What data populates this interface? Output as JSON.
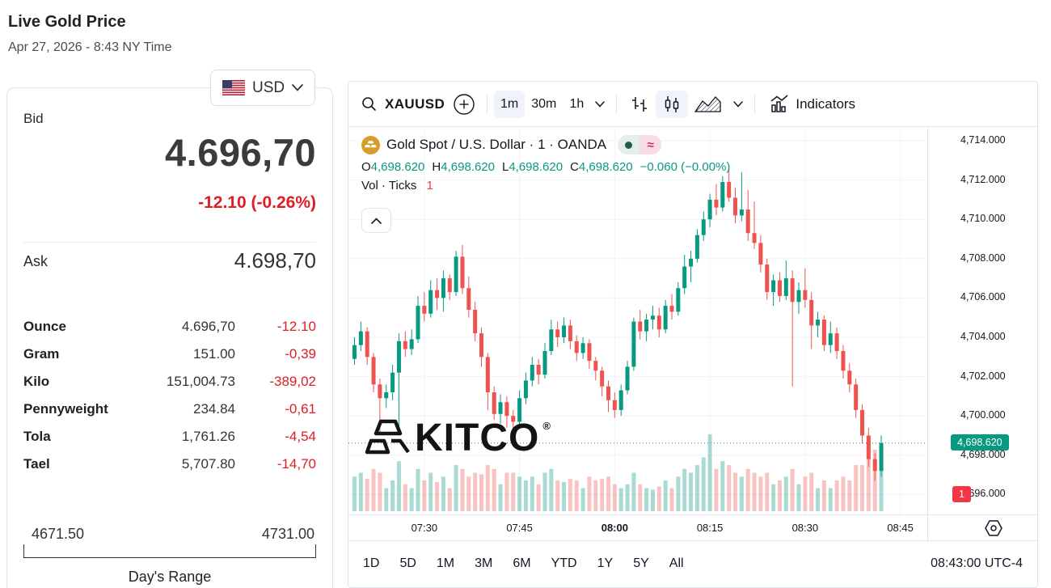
{
  "header": {
    "title": "Live Gold Price",
    "subtitle": "Apr 27, 2026 - 8:43 NY Time"
  },
  "currency_selector": {
    "code": "USD",
    "flag": "us-flag"
  },
  "quote": {
    "bid_label": "Bid",
    "bid": "4.696,70",
    "change": "-12.10 (-0.26%)",
    "ask_label": "Ask",
    "ask": "4.698,70",
    "metals": [
      {
        "label": "Ounce",
        "value": "4.696,70",
        "change": "-12.10"
      },
      {
        "label": "Gram",
        "value": "151.00",
        "change": "-0,39"
      },
      {
        "label": "Kilo",
        "value": "151,004.73",
        "change": "-389,02"
      },
      {
        "label": "Pennyweight",
        "value": "234.84",
        "change": "-0,61"
      },
      {
        "label": "Tola",
        "value": "1,761.26",
        "change": "-4,54"
      },
      {
        "label": "Tael",
        "value": "5,707.80",
        "change": "-14,70"
      }
    ],
    "range": {
      "low": "4671.50",
      "high": "4731.00",
      "label": "Day's Range"
    }
  },
  "chart": {
    "toolbar": {
      "symbol": "XAUUSD",
      "intervals": [
        "1m",
        "30m",
        "1h"
      ],
      "active_interval": "1m",
      "indicators_label": "Indicators"
    },
    "legend": {
      "title": "Gold Spot / U.S. Dollar · 1 · OANDA",
      "ohlc": [
        {
          "k": "O",
          "v": "4,698.620"
        },
        {
          "k": "H",
          "v": "4,698.620"
        },
        {
          "k": "L",
          "v": "4,698.620"
        },
        {
          "k": "C",
          "v": "4,698.620"
        }
      ],
      "change": "−0.060 (−0.00%)",
      "volume_label": "Vol · Ticks",
      "volume_value": "1"
    },
    "watermark": "KITCO",
    "price_axis": {
      "last_price_badge": "4,698.620",
      "countdown_badge": "1"
    },
    "time_axis": {
      "labels": [
        "07:30",
        "07:45",
        "08:00",
        "08:15",
        "08:30",
        "08:45"
      ],
      "bold": "08:00"
    },
    "bottom_toolbar": {
      "ranges": [
        "1D",
        "5D",
        "1M",
        "3M",
        "6M",
        "YTD",
        "1Y",
        "5Y",
        "All"
      ],
      "clock": "08:43:00 UTC-4"
    },
    "colors": {
      "up": "#089981",
      "down": "#ef5350",
      "vol_up": "rgba(8,153,129,0.35)",
      "vol_down": "rgba(239,83,80,0.35)",
      "grid": "#f0f3fa",
      "axis_text": "#131722",
      "badge_up": "#089981",
      "badge_count": "#f23645",
      "negative_red": "#e01c24"
    }
  },
  "chart_data": {
    "type": "candlestick",
    "symbol": "XAUUSD",
    "title": "Gold Spot / U.S. Dollar · 1 · OANDA",
    "interval": "1m",
    "start_time": "07:19",
    "end_time": "08:42",
    "last_price": 4698.62,
    "ylim": [
      4696,
      4714
    ],
    "y_ticks": [
      4696,
      4698,
      4700,
      4702,
      4704,
      4706,
      4708,
      4710,
      4712,
      4714
    ],
    "x_ticks": [
      "07:30",
      "07:45",
      "08:00",
      "08:15",
      "08:30",
      "08:45"
    ],
    "columns": [
      "open",
      "high",
      "low",
      "close",
      "relative_volume"
    ],
    "candles": [
      [
        4702.9,
        4704.0,
        4702.6,
        4703.6,
        0.45
      ],
      [
        4703.6,
        4704.8,
        4703.3,
        4704.3,
        0.5
      ],
      [
        4704.3,
        4704.5,
        4702.6,
        4703.0,
        0.42
      ],
      [
        4703.0,
        4703.2,
        4701.2,
        4701.6,
        0.55
      ],
      [
        4701.6,
        4701.9,
        4699.2,
        4700.9,
        0.5
      ],
      [
        4700.9,
        4701.6,
        4700.4,
        4701.2,
        0.3
      ],
      [
        4701.2,
        4702.6,
        4700.8,
        4702.2,
        0.4
      ],
      [
        4702.2,
        4704.2,
        4699.0,
        4703.8,
        0.65
      ],
      [
        4703.8,
        4704.3,
        4703.0,
        4703.4,
        0.35
      ],
      [
        4703.4,
        4704.4,
        4703.1,
        4703.9,
        0.3
      ],
      [
        4703.9,
        4706.1,
        4703.7,
        4705.6,
        0.55
      ],
      [
        4705.6,
        4706.3,
        4704.8,
        4705.2,
        0.4
      ],
      [
        4705.2,
        4706.9,
        4705.0,
        4706.4,
        0.5
      ],
      [
        4706.4,
        4707.0,
        4705.4,
        4706.0,
        0.38
      ],
      [
        4706.0,
        4707.4,
        4705.3,
        4707.0,
        0.45
      ],
      [
        4707.0,
        4707.2,
        4705.9,
        4706.3,
        0.3
      ],
      [
        4706.3,
        4708.4,
        4706.1,
        4708.1,
        0.6
      ],
      [
        4708.1,
        4708.7,
        4706.2,
        4706.5,
        0.55
      ],
      [
        4706.5,
        4707.1,
        4705.0,
        4705.4,
        0.45
      ],
      [
        4705.4,
        4705.8,
        4703.8,
        4704.2,
        0.5
      ],
      [
        4704.2,
        4704.5,
        4702.5,
        4703.0,
        0.48
      ],
      [
        4703.0,
        4703.2,
        4700.3,
        4701.2,
        0.6
      ],
      [
        4701.2,
        4701.5,
        4699.8,
        4700.1,
        0.55
      ],
      [
        4700.1,
        4701.1,
        4699.6,
        4700.7,
        0.35
      ],
      [
        4700.7,
        4701.0,
        4699.4,
        4700.0,
        0.5
      ],
      [
        4700.0,
        4700.3,
        4699.2,
        4699.7,
        0.5
      ],
      [
        4699.7,
        4701.3,
        4699.5,
        4700.9,
        0.45
      ],
      [
        4700.9,
        4702.2,
        4700.6,
        4701.8,
        0.4
      ],
      [
        4701.8,
        4703.0,
        4701.5,
        4702.6,
        0.45
      ],
      [
        4702.6,
        4702.9,
        4701.6,
        4702.1,
        0.35
      ],
      [
        4702.1,
        4703.7,
        4701.9,
        4703.3,
        0.5
      ],
      [
        4703.3,
        4704.9,
        4703.1,
        4704.4,
        0.55
      ],
      [
        4704.4,
        4704.8,
        4703.5,
        4704.0,
        0.4
      ],
      [
        4704.0,
        4705.0,
        4703.7,
        4704.6,
        0.38
      ],
      [
        4704.6,
        4704.9,
        4703.4,
        4703.8,
        0.42
      ],
      [
        4703.8,
        4704.1,
        4702.8,
        4703.2,
        0.4
      ],
      [
        4703.2,
        4704.0,
        4702.9,
        4703.7,
        0.3
      ],
      [
        4703.7,
        4703.9,
        4702.4,
        4702.8,
        0.45
      ],
      [
        4702.8,
        4703.0,
        4701.8,
        4702.3,
        0.4
      ],
      [
        4702.3,
        4702.5,
        4701.0,
        4701.5,
        0.42
      ],
      [
        4701.5,
        4701.8,
        4700.2,
        4700.8,
        0.45
      ],
      [
        4700.8,
        4701.2,
        4699.9,
        4700.3,
        0.35
      ],
      [
        4700.3,
        4701.6,
        4700.0,
        4701.3,
        0.3
      ],
      [
        4701.3,
        4702.8,
        4701.1,
        4702.5,
        0.35
      ],
      [
        4702.5,
        4705.0,
        4702.3,
        4704.8,
        0.5
      ],
      [
        4704.8,
        4705.4,
        4703.9,
        4704.3,
        0.35
      ],
      [
        4704.3,
        4705.2,
        4703.8,
        4704.9,
        0.3
      ],
      [
        4704.9,
        4705.6,
        4704.4,
        4705.1,
        0.28
      ],
      [
        4705.1,
        4705.5,
        4704.0,
        4704.4,
        0.32
      ],
      [
        4704.4,
        4705.9,
        4704.2,
        4705.6,
        0.4
      ],
      [
        4705.6,
        4706.2,
        4704.9,
        4705.3,
        0.3
      ],
      [
        4705.3,
        4706.8,
        4705.1,
        4706.5,
        0.45
      ],
      [
        4706.5,
        4708.2,
        4706.2,
        4707.6,
        0.55
      ],
      [
        4707.6,
        4708.4,
        4706.8,
        4708.0,
        0.5
      ],
      [
        4708.0,
        4709.5,
        4707.8,
        4709.2,
        0.6
      ],
      [
        4709.2,
        4710.4,
        4708.9,
        4710.0,
        0.7
      ],
      [
        4710.0,
        4711.3,
        4709.6,
        4711.0,
        1.0
      ],
      [
        4711.0,
        4711.8,
        4710.2,
        4710.6,
        0.55
      ],
      [
        4710.6,
        4712.2,
        4710.4,
        4711.9,
        0.65
      ],
      [
        4711.9,
        4712.6,
        4710.9,
        4711.1,
        0.6
      ],
      [
        4711.1,
        4711.6,
        4709.8,
        4710.2,
        0.5
      ],
      [
        4710.2,
        4712.4,
        4709.9,
        4710.5,
        0.45
      ],
      [
        4710.5,
        4711.5,
        4708.9,
        4709.3,
        0.55
      ],
      [
        4709.3,
        4710.9,
        4708.5,
        4708.8,
        0.5
      ],
      [
        4708.8,
        4709.2,
        4707.3,
        4707.7,
        0.45
      ],
      [
        4707.7,
        4708.0,
        4705.9,
        4706.3,
        0.5
      ],
      [
        4706.3,
        4707.2,
        4705.6,
        4706.9,
        0.35
      ],
      [
        4706.9,
        4707.3,
        4705.8,
        4706.1,
        0.4
      ],
      [
        4706.1,
        4707.9,
        4705.9,
        4707.0,
        0.45
      ],
      [
        4707.0,
        4707.4,
        4701.5,
        4705.8,
        0.55
      ],
      [
        4705.8,
        4706.8,
        4705.2,
        4706.4,
        0.35
      ],
      [
        4706.4,
        4707.5,
        4705.5,
        4705.9,
        0.45
      ],
      [
        4705.9,
        4706.3,
        4703.4,
        4704.6,
        0.5
      ],
      [
        4704.6,
        4705.3,
        4704.0,
        4704.9,
        0.3
      ],
      [
        4704.9,
        4705.1,
        4703.3,
        4703.6,
        0.4
      ],
      [
        4703.6,
        4704.8,
        4703.2,
        4704.2,
        0.3
      ],
      [
        4704.2,
        4704.5,
        4702.9,
        4703.3,
        0.4
      ],
      [
        4703.3,
        4703.6,
        4701.9,
        4702.3,
        0.45
      ],
      [
        4702.3,
        4702.7,
        4701.2,
        4701.6,
        0.4
      ],
      [
        4701.6,
        4701.9,
        4699.9,
        4700.3,
        0.6
      ],
      [
        4700.3,
        4700.6,
        4698.6,
        4699.0,
        0.6
      ],
      [
        4699.0,
        4699.4,
        4697.4,
        4697.8,
        0.95
      ],
      [
        4697.8,
        4698.1,
        4696.7,
        4697.2,
        0.8
      ],
      [
        4697.2,
        4699.0,
        4696.9,
        4698.62,
        0.85
      ]
    ]
  }
}
